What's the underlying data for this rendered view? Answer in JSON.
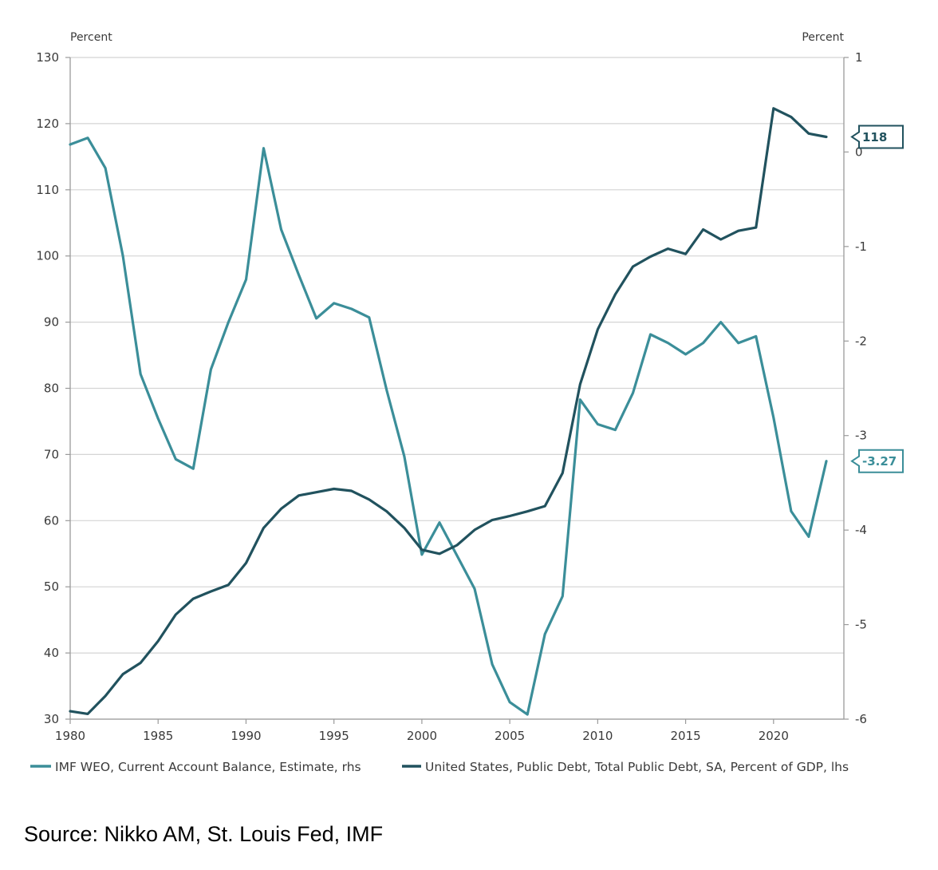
{
  "source_note": "Source: Nikko AM, St. Louis Fed, IMF",
  "colors": {
    "current_account": "#3b8e99",
    "public_debt": "#21525e",
    "grid": "#d4d4d4",
    "axis": "#9a9a9a"
  },
  "chart_data": {
    "type": "line",
    "title": "",
    "left_axis": {
      "unit_label": "Percent",
      "ylim": [
        30,
        130
      ],
      "ticks": [
        "30",
        "40",
        "50",
        "60",
        "70",
        "80",
        "90",
        "100",
        "110",
        "120",
        "130"
      ]
    },
    "right_axis": {
      "unit_label": "Percent",
      "ylim": [
        -6,
        1
      ],
      "ticks": [
        "-6",
        "-5",
        "-4",
        "-3",
        "-2",
        "-1",
        "0",
        "1"
      ]
    },
    "xlim": [
      1980,
      2024
    ],
    "x_ticks": [
      "1980",
      "1985",
      "1990",
      "1995",
      "2000",
      "2005",
      "2010",
      "2015",
      "2020"
    ],
    "grid": true,
    "legend_position": "bottom",
    "series": [
      {
        "name": "IMF WEO, Current Account Balance, Estimate, rhs",
        "axis": "right",
        "color_key": "current_account",
        "end_label": "-3.27",
        "x": [
          1980,
          1981,
          1982,
          1983,
          1984,
          1985,
          1986,
          1987,
          1988,
          1989,
          1990,
          1991,
          1992,
          1993,
          1994,
          1995,
          1996,
          1997,
          1998,
          1999,
          2000,
          2001,
          2002,
          2003,
          2004,
          2005,
          2006,
          2007,
          2008,
          2009,
          2010,
          2011,
          2012,
          2013,
          2014,
          2015,
          2016,
          2017,
          2018,
          2019,
          2020,
          2021,
          2022,
          2023
        ],
        "y": [
          0.08,
          0.15,
          -0.17,
          -1.1,
          -2.35,
          -2.82,
          -3.25,
          -3.35,
          -2.3,
          -1.8,
          -1.35,
          0.04,
          -0.82,
          -1.3,
          -1.76,
          -1.6,
          -1.66,
          -1.75,
          -2.52,
          -3.22,
          -4.26,
          -3.92,
          -4.27,
          -4.62,
          -5.42,
          -5.82,
          -5.95,
          -5.1,
          -4.7,
          -2.62,
          -2.88,
          -2.94,
          -2.55,
          -1.93,
          -2.02,
          -2.14,
          -2.02,
          -1.8,
          -2.02,
          -1.95,
          -2.81,
          -3.8,
          -4.07,
          -3.27
        ]
      },
      {
        "name": "United States, Public Debt, Total Public Debt, SA, Percent of GDP, lhs",
        "axis": "left",
        "color_key": "public_debt",
        "end_label": "118",
        "x": [
          1980,
          1981,
          1982,
          1983,
          1984,
          1985,
          1986,
          1987,
          1988,
          1989,
          1990,
          1991,
          1992,
          1993,
          1994,
          1995,
          1996,
          1997,
          1998,
          1999,
          2000,
          2001,
          2002,
          2003,
          2004,
          2005,
          2006,
          2007,
          2008,
          2009,
          2010,
          2011,
          2012,
          2013,
          2014,
          2015,
          2016,
          2017,
          2018,
          2019,
          2020,
          2021,
          2022,
          2023
        ],
        "y": [
          31.2,
          30.8,
          33.5,
          36.8,
          38.5,
          41.8,
          45.8,
          48.2,
          49.3,
          50.3,
          53.6,
          58.9,
          61.8,
          63.8,
          64.3,
          64.8,
          64.5,
          63.2,
          61.4,
          58.9,
          55.6,
          55.0,
          56.3,
          58.6,
          60.1,
          60.7,
          61.4,
          62.2,
          67.2,
          80.6,
          88.9,
          94.2,
          98.4,
          99.9,
          101.1,
          100.3,
          104.0,
          102.5,
          103.8,
          104.3,
          122.3,
          121.0,
          118.5,
          118.0
        ]
      }
    ]
  }
}
